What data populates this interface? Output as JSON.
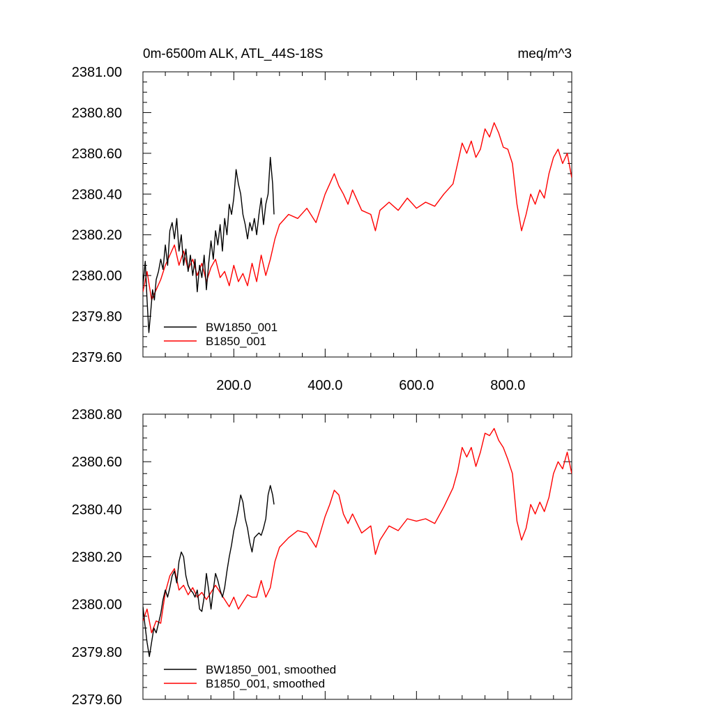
{
  "chart_data": [
    {
      "type": "line",
      "title": "0m-6500m ALK, ATL_44S-18S",
      "units": "meq/m^3",
      "xlabel": "",
      "ylabel": "",
      "xlim": [
        1,
        940
      ],
      "ylim": [
        2379.6,
        2381.0
      ],
      "xticks": [
        200,
        400,
        600,
        800
      ],
      "xtick_labels": [
        "200.0",
        "400.0",
        "600.0",
        "800.0"
      ],
      "yticks": [
        2379.6,
        2379.8,
        2380.0,
        2380.2,
        2380.4,
        2380.6,
        2380.8,
        2381.0
      ],
      "ytick_labels": [
        "2379.60",
        "2379.80",
        "2380.00",
        "2380.20",
        "2380.40",
        "2380.60",
        "2380.80",
        "2381.00"
      ],
      "grid": false,
      "legend_position": "bottom-left",
      "series": [
        {
          "name": "BW1850_001",
          "color": "#000000",
          "x": [
            1,
            6,
            10,
            14,
            18,
            22,
            26,
            30,
            35,
            40,
            45,
            50,
            55,
            60,
            65,
            70,
            75,
            80,
            85,
            90,
            95,
            100,
            105,
            110,
            115,
            120,
            125,
            130,
            135,
            140,
            145,
            150,
            155,
            160,
            165,
            170,
            175,
            180,
            185,
            190,
            195,
            200,
            205,
            210,
            215,
            220,
            225,
            230,
            235,
            240,
            245,
            250,
            255,
            260,
            265,
            270,
            275,
            280,
            285,
            288
          ],
          "values": [
            2379.95,
            2380.07,
            2379.88,
            2379.72,
            2379.82,
            2379.93,
            2379.88,
            2379.98,
            2380.02,
            2380.08,
            2380.03,
            2380.15,
            2380.05,
            2380.22,
            2380.26,
            2380.18,
            2380.28,
            2380.12,
            2380.2,
            2380.05,
            2380.13,
            2380.02,
            2380.1,
            2380.0,
            2380.08,
            2379.92,
            2380.05,
            2379.99,
            2380.1,
            2379.93,
            2380.06,
            2380.17,
            2380.08,
            2380.22,
            2380.15,
            2380.25,
            2380.12,
            2380.28,
            2380.2,
            2380.35,
            2380.3,
            2380.38,
            2380.52,
            2380.45,
            2380.4,
            2380.3,
            2380.25,
            2380.18,
            2380.26,
            2380.22,
            2380.28,
            2380.2,
            2380.3,
            2380.38,
            2380.25,
            2380.35,
            2380.4,
            2380.58,
            2380.45,
            2380.3
          ]
        },
        {
          "name": "B1850_001",
          "color": "#ff0000",
          "x": [
            1,
            10,
            20,
            30,
            40,
            50,
            60,
            70,
            80,
            90,
            100,
            110,
            120,
            130,
            140,
            150,
            160,
            170,
            180,
            190,
            200,
            210,
            220,
            230,
            240,
            250,
            260,
            270,
            280,
            290,
            300,
            320,
            340,
            360,
            380,
            400,
            410,
            420,
            430,
            440,
            450,
            460,
            480,
            500,
            510,
            520,
            540,
            560,
            580,
            600,
            620,
            640,
            660,
            680,
            690,
            700,
            710,
            720,
            730,
            740,
            750,
            760,
            770,
            780,
            790,
            800,
            810,
            820,
            830,
            840,
            850,
            860,
            870,
            880,
            890,
            900,
            910,
            920,
            930,
            940
          ],
          "values": [
            2379.92,
            2380.02,
            2379.88,
            2379.93,
            2379.98,
            2380.05,
            2380.1,
            2380.15,
            2380.05,
            2380.12,
            2380.03,
            2380.08,
            2380.0,
            2380.06,
            2379.97,
            2380.04,
            2380.08,
            2379.99,
            2380.02,
            2379.95,
            2380.05,
            2379.97,
            2380.01,
            2379.95,
            2380.06,
            2379.97,
            2380.1,
            2380.0,
            2380.08,
            2380.18,
            2380.25,
            2380.3,
            2380.28,
            2380.33,
            2380.26,
            2380.4,
            2380.45,
            2380.5,
            2380.44,
            2380.4,
            2380.35,
            2380.42,
            2380.32,
            2380.3,
            2380.22,
            2380.32,
            2380.36,
            2380.32,
            2380.38,
            2380.33,
            2380.36,
            2380.34,
            2380.4,
            2380.45,
            2380.55,
            2380.65,
            2380.6,
            2380.66,
            2380.58,
            2380.62,
            2380.72,
            2380.68,
            2380.75,
            2380.7,
            2380.63,
            2380.62,
            2380.55,
            2380.35,
            2380.22,
            2380.3,
            2380.4,
            2380.35,
            2380.42,
            2380.38,
            2380.5,
            2380.58,
            2380.62,
            2380.55,
            2380.6,
            2380.48
          ]
        }
      ]
    },
    {
      "type": "line",
      "title": "",
      "xlabel": "",
      "ylabel": "",
      "xlim": [
        1,
        940
      ],
      "ylim": [
        2379.6,
        2380.8
      ],
      "yticks": [
        2379.6,
        2379.8,
        2380.0,
        2380.2,
        2380.4,
        2380.6,
        2380.8
      ],
      "ytick_labels": [
        "2379.60",
        "2379.80",
        "2380.00",
        "2380.20",
        "2380.40",
        "2380.60",
        "2380.80"
      ],
      "grid": false,
      "legend_position": "bottom-left",
      "series": [
        {
          "name": "BW1850_001, smoothed",
          "color": "#000000",
          "x": [
            1,
            5,
            10,
            15,
            20,
            25,
            30,
            35,
            40,
            45,
            50,
            55,
            60,
            65,
            70,
            75,
            80,
            85,
            90,
            95,
            100,
            105,
            110,
            115,
            120,
            125,
            130,
            135,
            140,
            145,
            150,
            155,
            160,
            165,
            170,
            175,
            180,
            185,
            190,
            195,
            200,
            205,
            210,
            215,
            220,
            225,
            230,
            235,
            240,
            245,
            250,
            255,
            260,
            265,
            270,
            275,
            280,
            285,
            288
          ],
          "values": [
            2379.99,
            2379.92,
            2379.84,
            2379.78,
            2379.84,
            2379.9,
            2379.88,
            2379.92,
            2379.96,
            2380.02,
            2380.06,
            2380.03,
            2380.07,
            2380.12,
            2380.14,
            2380.09,
            2380.18,
            2380.22,
            2380.2,
            2380.12,
            2380.08,
            2380.06,
            2380.05,
            2380.03,
            2380.06,
            2379.98,
            2379.97,
            2380.03,
            2380.13,
            2380.06,
            2379.98,
            2380.06,
            2380.13,
            2380.1,
            2380.06,
            2380.03,
            2380.07,
            2380.14,
            2380.2,
            2380.25,
            2380.31,
            2380.35,
            2380.4,
            2380.46,
            2380.43,
            2380.36,
            2380.32,
            2380.26,
            2380.22,
            2380.28,
            2380.29,
            2380.3,
            2380.29,
            2380.32,
            2380.36,
            2380.46,
            2380.5,
            2380.46,
            2380.42
          ]
        },
        {
          "name": "B1850_001, smoothed",
          "color": "#ff0000",
          "x": [
            1,
            10,
            20,
            30,
            40,
            50,
            60,
            70,
            80,
            90,
            100,
            110,
            120,
            130,
            140,
            150,
            160,
            170,
            180,
            190,
            200,
            210,
            220,
            230,
            240,
            250,
            260,
            270,
            280,
            290,
            300,
            320,
            340,
            360,
            380,
            400,
            410,
            420,
            430,
            440,
            450,
            460,
            480,
            500,
            510,
            520,
            540,
            560,
            580,
            600,
            620,
            640,
            660,
            680,
            690,
            700,
            710,
            720,
            730,
            740,
            750,
            760,
            770,
            780,
            790,
            800,
            810,
            820,
            830,
            840,
            850,
            860,
            870,
            880,
            890,
            900,
            910,
            920,
            930,
            940
          ],
          "values": [
            2379.93,
            2379.98,
            2379.88,
            2379.93,
            2379.92,
            2380.05,
            2380.12,
            2380.15,
            2380.06,
            2380.08,
            2380.04,
            2380.07,
            2380.03,
            2380.05,
            2380.02,
            2380.05,
            2380.08,
            2380.05,
            2380.02,
            2379.99,
            2380.03,
            2379.98,
            2380.01,
            2380.04,
            2380.03,
            2380.03,
            2380.1,
            2380.03,
            2380.07,
            2380.18,
            2380.24,
            2380.28,
            2380.31,
            2380.3,
            2380.24,
            2380.37,
            2380.42,
            2380.48,
            2380.46,
            2380.38,
            2380.34,
            2380.38,
            2380.3,
            2380.33,
            2380.21,
            2380.27,
            2380.33,
            2380.31,
            2380.36,
            2380.35,
            2380.36,
            2380.34,
            2380.41,
            2380.49,
            2380.56,
            2380.66,
            2380.62,
            2380.66,
            2380.58,
            2380.64,
            2380.72,
            2380.71,
            2380.74,
            2380.69,
            2380.66,
            2380.61,
            2380.55,
            2380.35,
            2380.27,
            2380.32,
            2380.42,
            2380.38,
            2380.43,
            2380.39,
            2380.45,
            2380.55,
            2380.6,
            2380.57,
            2380.64,
            2380.55
          ]
        }
      ]
    }
  ]
}
